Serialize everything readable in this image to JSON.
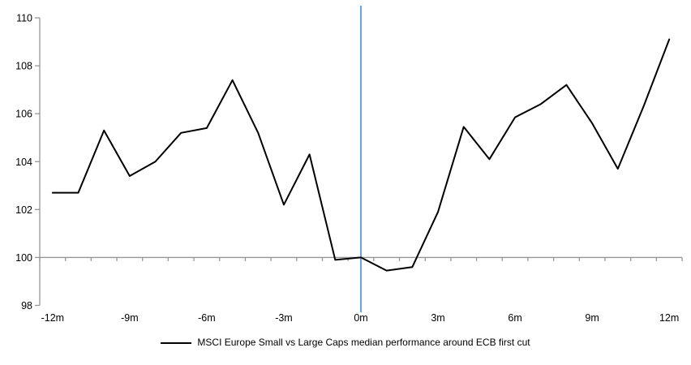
{
  "chart_data": {
    "type": "line",
    "title": "",
    "xlabel": "",
    "ylabel": "",
    "x": [
      -12,
      -11,
      -10,
      -9,
      -8,
      -7,
      -6,
      -5,
      -4,
      -3,
      -2,
      -1,
      0,
      1,
      2,
      3,
      4,
      5,
      6,
      7,
      8,
      9,
      10,
      11,
      12
    ],
    "x_tick_months": [
      -12,
      -9,
      -6,
      -3,
      0,
      3,
      6,
      9,
      12
    ],
    "x_tick_labels": [
      "-12m",
      "-9m",
      "-6m",
      "-3m",
      "0m",
      "3m",
      "6m",
      "9m",
      "12m"
    ],
    "y_ticks": [
      98,
      100,
      102,
      104,
      106,
      108,
      110
    ],
    "ylim": [
      98,
      110
    ],
    "baseline": 100,
    "grid": "baseline-only",
    "legend_position": "bottom-center",
    "axis_color": "#969696",
    "series": [
      {
        "name": "MSCI Europe Small vs Large Caps median performance around ECB first cut",
        "color": "#000000",
        "values": [
          102.7,
          102.7,
          105.3,
          103.4,
          104.0,
          105.2,
          105.4,
          107.4,
          105.2,
          102.2,
          104.3,
          99.9,
          100.0,
          99.45,
          99.6,
          101.9,
          105.45,
          104.1,
          105.85,
          106.4,
          107.2,
          105.6,
          103.7,
          106.3,
          109.1
        ]
      }
    ],
    "event_line": {
      "x": 0,
      "color": "#72A5D6",
      "label": ""
    }
  }
}
